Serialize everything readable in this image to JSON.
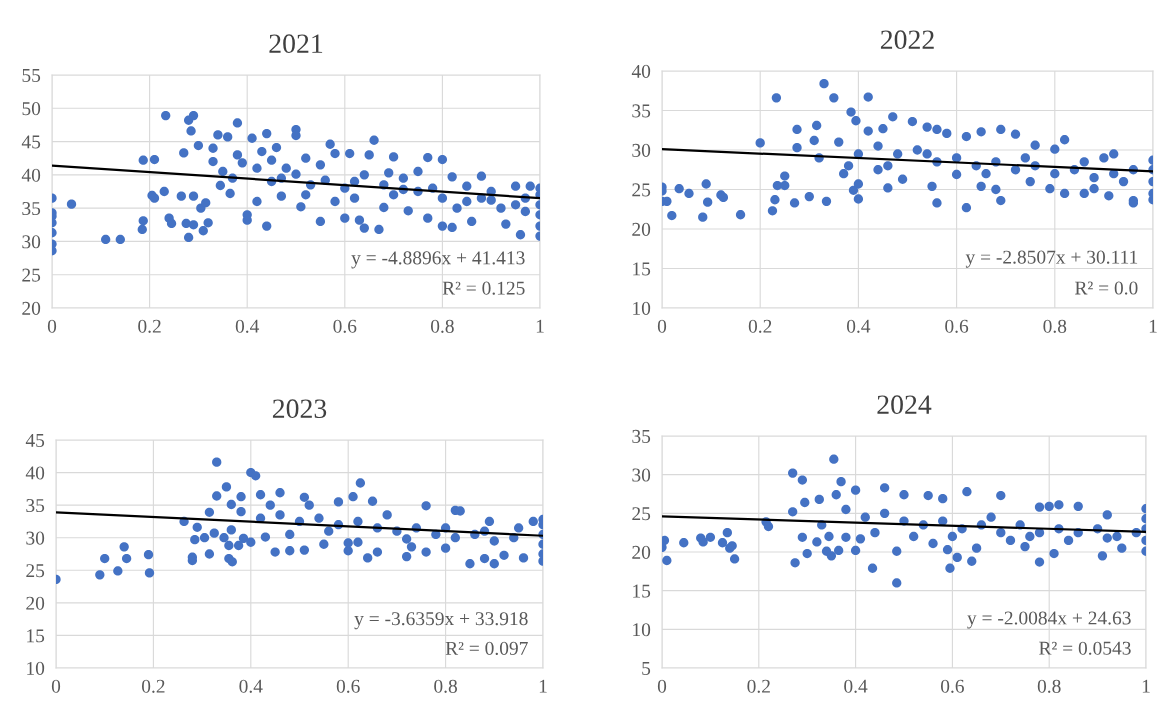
{
  "chart_data": [
    {
      "type": "scatter",
      "title": "2021",
      "xlim": [
        0,
        1
      ],
      "xticks": [
        0,
        0.2,
        0.4,
        0.6,
        0.8,
        1
      ],
      "ylim": [
        20,
        55
      ],
      "yticks": [
        20,
        25,
        30,
        35,
        40,
        45,
        50,
        55
      ],
      "grid": true,
      "annotations": [
        "y = -4.8896x + 41.413",
        "R² = 0.125"
      ],
      "series": [
        {
          "marker": "circle",
          "color": "#4472c4",
          "x": [
            0,
            0,
            0,
            0,
            0,
            0,
            0,
            0.04,
            0.11,
            0.14,
            0.185,
            0.187,
            0.187,
            0.21,
            0.205,
            0.21,
            0.23,
            0.233,
            0.24,
            0.245,
            0.265,
            0.27,
            0.275,
            0.28,
            0.28,
            0.29,
            0.285,
            0.29,
            0.29,
            0.3,
            0.305,
            0.31,
            0.315,
            0.32,
            0.33,
            0.34,
            0.345,
            0.36,
            0.365,
            0.38,
            0.39,
            0.4,
            0.4,
            0.41,
            0.42,
            0.44,
            0.44,
            0.45,
            0.46,
            0.47,
            0.5,
            0.5,
            0.5,
            0.51,
            0.52,
            0.55,
            0.56,
            0.57,
            0.58,
            0.6,
            0.61,
            0.62,
            0.63,
            0.64,
            0.65,
            0.66,
            0.67,
            0.68,
            0.69,
            0.7,
            0.72,
            0.73,
            0.75,
            0.77,
            0.77,
            0.8,
            0.8,
            0.82,
            0.82,
            0.85,
            0.86,
            0.88,
            0.9,
            0.93,
            0.95,
            0.96,
            0.97,
            0.98,
            1,
            1,
            1,
            1,
            1,
            1,
            0.35,
            0.38,
            0.42,
            0.45,
            0.48,
            0.53,
            0.55,
            0.6,
            0.64,
            0.7,
            0.75,
            0.8,
            0.85,
            0.9,
            0.95,
            0.33,
            0.37,
            0.43,
            0.47,
            0.52,
            0.58,
            0.62,
            0.68,
            0.72,
            0.78,
            0.83,
            0.88,
            0.92,
            0.97
          ],
          "values": [
            36.5,
            34.3,
            33.8,
            32.8,
            31.3,
            29.6,
            28.6,
            35.6,
            30.3,
            30.3,
            31.8,
            33.1,
            42.2,
            42.3,
            36.9,
            36.5,
            37.5,
            48.9,
            33.5,
            32.7,
            36.8,
            43.3,
            32.7,
            30.6,
            48.2,
            48.9,
            46.6,
            32.5,
            36.8,
            44.4,
            35.0,
            31.6,
            35.8,
            32.8,
            42.0,
            46.0,
            38.4,
            45.7,
            37.2,
            47.8,
            41.8,
            33.2,
            34.0,
            45.5,
            36.0,
            32.3,
            46.2,
            42.2,
            44.1,
            36.8,
            46.8,
            45.9,
            40.1,
            35.2,
            42.5,
            33.0,
            39.2,
            44.6,
            43.2,
            33.5,
            43.2,
            36.5,
            33.2,
            32.0,
            43.0,
            45.2,
            31.8,
            35.1,
            40.3,
            42.7,
            37.8,
            34.6,
            40.5,
            42.6,
            33.5,
            32.3,
            42.3,
            32.1,
            39.7,
            38.3,
            33.0,
            39.8,
            36.2,
            32.6,
            38.3,
            31.0,
            34.5,
            38.3,
            30.8,
            32.3,
            34.0,
            35.5,
            37.0,
            38.0,
            40.5,
            43.0,
            41.0,
            39.0,
            41.0,
            38.5,
            41.5,
            38.0,
            40.0,
            37.0,
            37.5,
            36.5,
            36.0,
            37.5,
            35.5,
            44.0,
            39.5,
            43.5,
            39.5,
            37.0,
            36.0,
            39.0,
            38.5,
            39.5,
            38.0,
            35.0,
            36.5,
            35.0,
            36.5
          ]
        },
        {
          "type": "line",
          "marker": "none",
          "color": "#000000",
          "x": [
            0,
            1
          ],
          "values": [
            41.4,
            36.5
          ]
        }
      ]
    },
    {
      "type": "scatter",
      "title": "2022",
      "xlim": [
        0,
        1
      ],
      "xticks": [
        0,
        0.2,
        0.4,
        0.6,
        0.8,
        1
      ],
      "ylim": [
        10,
        40
      ],
      "yticks": [
        10,
        15,
        20,
        25,
        30,
        35,
        40
      ],
      "grid": true,
      "annotations": [
        "y = -2.8507x + 30.111",
        "R² = 0.0"
      ],
      "series": [
        {
          "marker": "circle",
          "color": "#4472c4",
          "x": [
            0,
            0,
            0,
            0.01,
            0.02,
            0.035,
            0.055,
            0.083,
            0.09,
            0.093,
            0.12,
            0.125,
            0.16,
            0.2,
            0.225,
            0.23,
            0.233,
            0.235,
            0.25,
            0.25,
            0.27,
            0.275,
            0.275,
            0.3,
            0.31,
            0.315,
            0.33,
            0.335,
            0.35,
            0.37,
            0.385,
            0.39,
            0.4,
            0.4,
            0.395,
            0.42,
            0.42,
            0.44,
            0.45,
            0.46,
            0.47,
            0.49,
            0.51,
            0.54,
            0.55,
            0.56,
            0.56,
            0.58,
            0.6,
            0.62,
            0.62,
            0.65,
            0.65,
            0.68,
            0.69,
            0.69,
            0.72,
            0.75,
            0.76,
            0.79,
            0.8,
            0.82,
            0.82,
            0.86,
            0.88,
            0.9,
            0.91,
            0.92,
            0.96,
            0.96,
            1,
            1,
            1,
            1,
            1,
            0.32,
            0.36,
            0.4,
            0.44,
            0.48,
            0.52,
            0.56,
            0.6,
            0.64,
            0.68,
            0.72,
            0.76,
            0.8,
            0.84,
            0.88,
            0.92,
            0.96,
            0.38,
            0.46,
            0.54,
            0.66,
            0.74,
            0.86,
            0.94
          ],
          "values": [
            25.3,
            24.8,
            23.5,
            23.5,
            21.7,
            25.1,
            24.5,
            21.5,
            25.7,
            23.4,
            24.3,
            24.0,
            21.8,
            30.9,
            22.3,
            23.7,
            36.6,
            25.5,
            25.5,
            26.7,
            23.3,
            32.6,
            30.3,
            24.1,
            31.2,
            33.1,
            38.4,
            23.5,
            36.6,
            27.0,
            34.8,
            24.9,
            25.7,
            23.8,
            33.7,
            36.7,
            32.4,
            27.5,
            32.7,
            25.2,
            34.2,
            26.3,
            33.6,
            32.9,
            25.4,
            23.3,
            32.6,
            32.1,
            26.9,
            22.7,
            31.7,
            32.3,
            25.4,
            25.0,
            32.6,
            23.6,
            32.0,
            26.0,
            30.6,
            25.1,
            30.1,
            31.3,
            24.5,
            24.5,
            25.1,
            29.0,
            24.2,
            29.5,
            23.6,
            23.3,
            23.7,
            24.5,
            26.0,
            27.5,
            28.7,
            29.0,
            31.0,
            29.5,
            30.5,
            29.5,
            30.0,
            28.5,
            29.0,
            28.0,
            28.5,
            27.5,
            28.0,
            27.0,
            27.5,
            26.5,
            27.0,
            27.5,
            28.0,
            28.0,
            29.5,
            27.0,
            29.0,
            28.5,
            26.0
          ]
        },
        {
          "type": "line",
          "marker": "none",
          "color": "#000000",
          "x": [
            0,
            1
          ],
          "values": [
            30.1,
            27.3
          ]
        }
      ]
    },
    {
      "type": "scatter",
      "title": "2023",
      "xlim": [
        0,
        1
      ],
      "xticks": [
        0,
        0.2,
        0.4,
        0.6,
        0.8,
        1
      ],
      "ylim": [
        10,
        45
      ],
      "yticks": [
        10,
        15,
        20,
        25,
        30,
        35,
        40,
        45
      ],
      "grid": true,
      "annotations": [
        "y = -3.6359x + 33.918",
        "R² = 0.097"
      ],
      "series": [
        {
          "marker": "circle",
          "color": "#4472c4",
          "x": [
            0,
            0.09,
            0.1,
            0.127,
            0.14,
            0.145,
            0.19,
            0.192,
            0.263,
            0.28,
            0.28,
            0.285,
            0.29,
            0.305,
            0.315,
            0.315,
            0.325,
            0.33,
            0.33,
            0.345,
            0.35,
            0.355,
            0.355,
            0.36,
            0.36,
            0.362,
            0.375,
            0.38,
            0.385,
            0.4,
            0.41,
            0.4,
            0.42,
            0.43,
            0.45,
            0.46,
            0.48,
            0.51,
            0.51,
            0.55,
            0.58,
            0.6,
            0.6,
            0.61,
            0.62,
            0.625,
            0.64,
            0.65,
            0.66,
            0.72,
            0.73,
            0.76,
            0.76,
            0.8,
            0.82,
            0.83,
            0.85,
            0.88,
            0.89,
            0.9,
            0.92,
            0.96,
            0.98,
            1,
            1,
            1,
            1,
            1,
            1,
            0.38,
            0.42,
            0.46,
            0.5,
            0.54,
            0.58,
            0.62,
            0.66,
            0.7,
            0.74,
            0.78,
            0.82,
            0.86,
            0.9,
            0.94,
            0.44,
            0.52,
            0.56,
            0.68,
            0.72,
            0.8,
            0.88,
            0.95,
            0.48
          ],
          "values": [
            23.6,
            24.3,
            26.8,
            24.9,
            28.6,
            26.8,
            27.4,
            24.6,
            32.5,
            26.5,
            27.0,
            29.7,
            31.6,
            30.0,
            33.9,
            27.5,
            30.7,
            41.6,
            36.4,
            30.0,
            37.8,
            28.8,
            26.8,
            31.2,
            35.1,
            26.3,
            28.8,
            36.3,
            29.9,
            40.0,
            39.5,
            29.3,
            36.6,
            30.1,
            27.8,
            36.9,
            28.0,
            28.1,
            36.2,
            29.0,
            35.5,
            28.0,
            29.2,
            36.3,
            29.3,
            38.4,
            26.9,
            35.6,
            27.8,
            27.1,
            28.6,
            34.9,
            27.8,
            28.4,
            34.2,
            34.1,
            26.0,
            26.8,
            32.5,
            26.0,
            27.3,
            26.9,
            32.5,
            26.4,
            27.5,
            29.0,
            30.5,
            32.0,
            32.8,
            34.0,
            33.0,
            33.5,
            32.5,
            33.0,
            32.0,
            32.5,
            31.5,
            31.0,
            31.5,
            30.5,
            30.0,
            30.5,
            29.5,
            30.0,
            35.0,
            35.0,
            31.0,
            33.5,
            29.8,
            31.5,
            31.0,
            31.5,
            30.5
          ]
        },
        {
          "type": "line",
          "marker": "none",
          "color": "#000000",
          "x": [
            0,
            1
          ],
          "values": [
            33.9,
            30.3
          ]
        }
      ]
    },
    {
      "type": "scatter",
      "title": "2024",
      "xlim": [
        0,
        1
      ],
      "xticks": [
        0,
        0.2,
        0.4,
        0.6,
        0.8,
        1
      ],
      "ylim": [
        5,
        35
      ],
      "yticks": [
        5,
        10,
        15,
        20,
        25,
        30,
        35
      ],
      "grid": true,
      "annotations": [
        "y = -2.0084x + 24.63",
        "R² = 0.0543"
      ],
      "series": [
        {
          "marker": "circle",
          "color": "#4472c4",
          "x": [
            0,
            0.005,
            0.01,
            0.045,
            0.08,
            0.085,
            0.1,
            0.125,
            0.135,
            0.14,
            0.145,
            0.15,
            0.215,
            0.22,
            0.27,
            0.27,
            0.275,
            0.29,
            0.29,
            0.295,
            0.3,
            0.32,
            0.325,
            0.33,
            0.34,
            0.345,
            0.35,
            0.355,
            0.36,
            0.365,
            0.37,
            0.38,
            0.4,
            0.4,
            0.41,
            0.435,
            0.46,
            0.485,
            0.485,
            0.5,
            0.55,
            0.56,
            0.58,
            0.59,
            0.595,
            0.61,
            0.63,
            0.64,
            0.65,
            0.7,
            0.72,
            0.75,
            0.78,
            0.78,
            0.8,
            0.81,
            0.82,
            0.86,
            0.91,
            0.92,
            0.95,
            1,
            1,
            1,
            1,
            1,
            0.38,
            0.42,
            0.46,
            0.5,
            0.54,
            0.58,
            0.62,
            0.66,
            0.7,
            0.74,
            0.78,
            0.82,
            0.86,
            0.9,
            0.94,
            0.98,
            0.44,
            0.52,
            0.6,
            0.68,
            0.76,
            0.84,
            0.92
          ],
          "values": [
            20.6,
            21.5,
            18.9,
            21.2,
            21.8,
            21.3,
            21.9,
            21.2,
            22.5,
            20.5,
            20.8,
            19.1,
            23.9,
            23.3,
            30.2,
            25.2,
            18.6,
            21.9,
            29.3,
            26.4,
            19.8,
            21.3,
            26.8,
            23.5,
            20.1,
            22.0,
            19.5,
            32.0,
            27.4,
            20.2,
            29.1,
            21.9,
            20.2,
            28.0,
            21.7,
            17.9,
            28.3,
            16.0,
            20.1,
            27.4,
            27.3,
            21.1,
            26.9,
            20.3,
            17.9,
            19.3,
            27.8,
            18.8,
            20.5,
            27.3,
            21.5,
            20.7,
            18.7,
            25.8,
            25.9,
            19.8,
            26.1,
            25.9,
            19.5,
            24.8,
            20.5,
            25.6,
            20.1,
            21.5,
            23.0,
            24.3,
            25.5,
            24.5,
            25.0,
            24.0,
            23.5,
            24.0,
            23.0,
            23.5,
            22.5,
            23.5,
            22.5,
            23.0,
            22.5,
            23.0,
            22.0,
            22.5,
            22.5,
            22.0,
            22.0,
            24.5,
            22.0,
            21.5,
            21.8
          ]
        },
        {
          "type": "line",
          "marker": "none",
          "color": "#000000",
          "x": [
            0,
            1
          ],
          "values": [
            24.6,
            22.6
          ]
        }
      ]
    }
  ]
}
